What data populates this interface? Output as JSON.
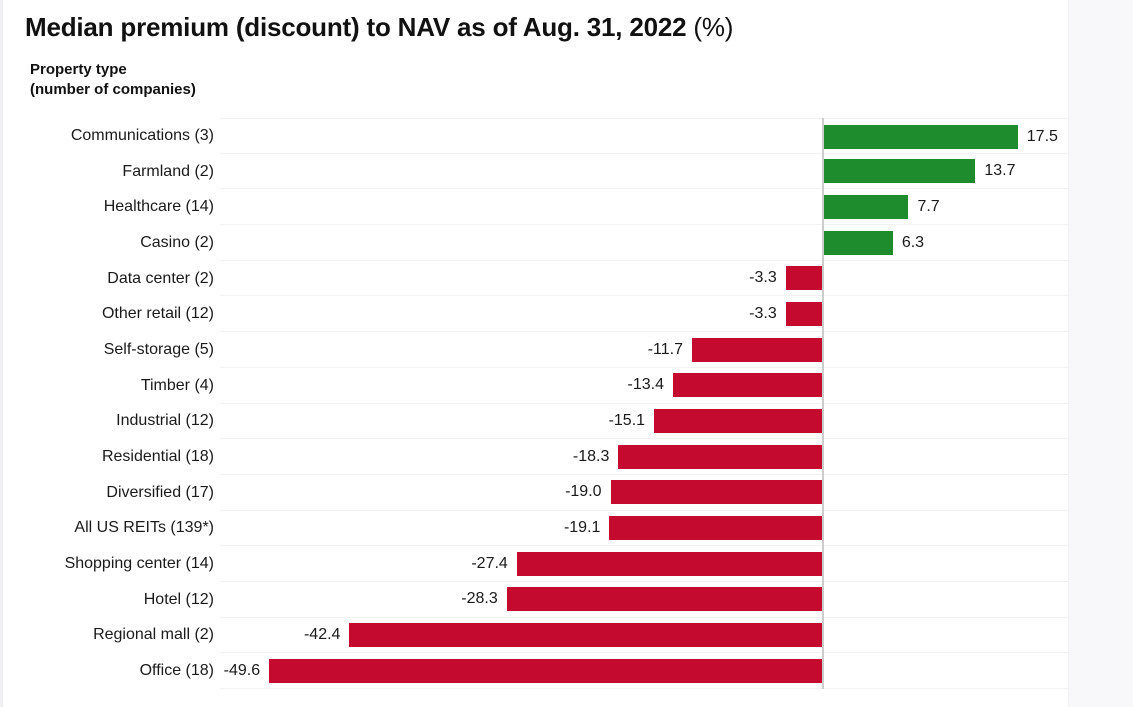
{
  "page": {
    "title_main": "Median premium (discount) to NAV as of Aug. 31, 2022",
    "title_suffix": " (%)",
    "axis_title_line1": "Property type",
    "axis_title_line2": "(number of companies)"
  },
  "colors": {
    "positive_bar": "#1e8b2c",
    "negative_bar": "#c40a2e",
    "gridline": "#f2f2f2",
    "zero_line": "#cccccc",
    "text": "#1a1a1a"
  },
  "chart_data": {
    "type": "bar",
    "orientation": "horizontal",
    "title": "Median premium (discount) to NAV as of Aug. 31, 2022 (%)",
    "xlabel": "",
    "ylabel": "Property type (number of companies)",
    "categories": [
      "Communications (3)",
      "Farmland (2)",
      "Healthcare (14)",
      "Casino (2)",
      "Data center (2)",
      "Other retail (12)",
      "Self-storage (5)",
      "Timber (4)",
      "Industrial (12)",
      "Residential (18)",
      "Diversified (17)",
      "All US REITs (139*)",
      "Shopping center (14)",
      "Hotel (12)",
      "Regional mall (2)",
      "Office (18)"
    ],
    "values": [
      17.5,
      13.7,
      7.7,
      6.3,
      -3.3,
      -3.3,
      -11.7,
      -13.4,
      -15.1,
      -18.3,
      -19.0,
      -19.1,
      -27.4,
      -28.3,
      -42.4,
      -49.6
    ],
    "value_labels": [
      "17.5",
      "13.7",
      "7.7",
      "6.3",
      "-3.3",
      "-3.3",
      "-11.7",
      "-13.4",
      "-15.1",
      "-18.3",
      "-19.0",
      "-19.1",
      "-27.4",
      "-28.3",
      "-42.4",
      "-49.6"
    ],
    "xlim": [
      -54,
      22
    ],
    "grid": "row separator lines, horizontal only",
    "legend": "none",
    "positive_color": "#1e8b2c",
    "negative_color": "#c40a2e",
    "value_label_position": "outside bar end",
    "zero_line": true
  }
}
